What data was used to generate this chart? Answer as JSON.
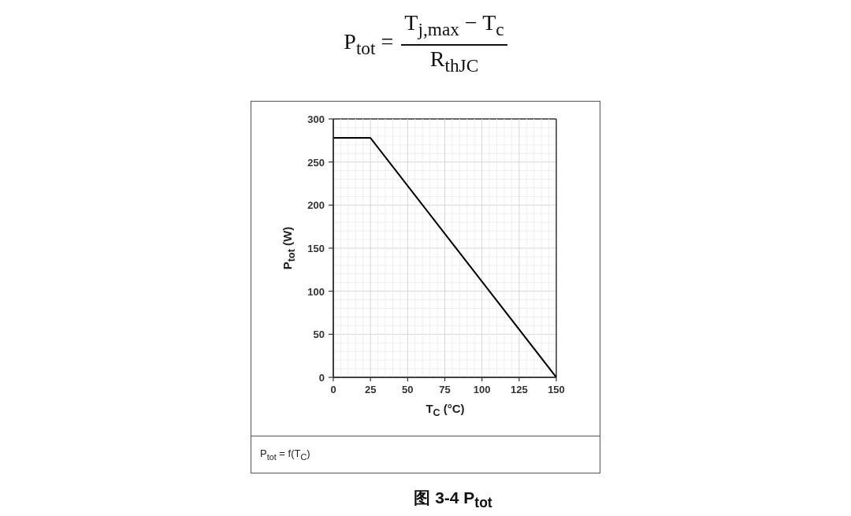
{
  "chart_data": {
    "type": "line",
    "title": "图 3-4 P$_{tot}$",
    "xlabel": "T$_{C}$ (°C)",
    "ylabel": "P$_{tot}$ (W)",
    "annotations": [
      "P$_{tot}$ =",
      "T$_{j,max}$ − T$_{c}$",
      "R$_{thJC}$",
      "P$_{tot}$ = f(T$_{C}$)"
    ],
    "x": [
      0,
      25,
      150
    ],
    "values": [
      278,
      278,
      0
    ],
    "color": "#000000",
    "xlim": [
      0,
      150
    ],
    "ylim": [
      0,
      300
    ],
    "xticks": [
      0,
      {
        "value": 5,
        "label": null
      },
      {
        "value": 10,
        "label": null
      },
      {
        "value": 15,
        "label": null
      },
      {
        "value": 20,
        "label": null
      },
      25,
      {
        "value": 30,
        "label": null
      },
      {
        "value": 35,
        "label": null
      },
      {
        "value": 40,
        "label": null
      },
      {
        "value": 45,
        "label": null
      },
      50,
      {
        "value": 55,
        "label": null
      },
      {
        "value": 60,
        "label": null
      },
      {
        "value": 65,
        "label": null
      },
      {
        "value": 70,
        "label": null
      },
      75,
      {
        "value": 80,
        "label": null
      },
      {
        "value": 85,
        "label": null
      },
      {
        "value": 90,
        "label": null
      },
      {
        "value": 95,
        "label": null
      },
      100,
      {
        "value": 105,
        "label": null
      },
      {
        "value": 110,
        "label": null
      },
      {
        "value": 115,
        "label": null
      },
      {
        "value": 120,
        "label": null
      },
      125,
      {
        "value": 130,
        "label": null
      },
      {
        "value": 135,
        "label": null
      },
      {
        "value": 140,
        "label": null
      },
      {
        "value": 145,
        "label": null
      },
      150
    ],
    "yticks": [
      0,
      {
        "value": 10,
        "label": null
      },
      {
        "value": 20,
        "label": null
      },
      {
        "value": 30,
        "label": null
      },
      {
        "value": 40,
        "label": null
      },
      50,
      {
        "value": 60,
        "label": null
      },
      {
        "value": 70,
        "label": null
      },
      {
        "value": 80,
        "label": null
      },
      {
        "value": 90,
        "label": null
      },
      100,
      {
        "value": 110,
        "label": null
      },
      {
        "value": 120,
        "label": null
      },
      {
        "value": 130,
        "label": null
      },
      {
        "value": 140,
        "label": null
      },
      150,
      {
        "value": 160,
        "label": null
      },
      {
        "value": 170,
        "label": null
      },
      {
        "value": 180,
        "label": null
      },
      {
        "value": 190,
        "label": null
      },
      200,
      {
        "value": 210,
        "label": null
      },
      {
        "value": 220,
        "label": null
      },
      {
        "value": 230,
        "label": null
      },
      {
        "value": 240,
        "label": null
      },
      250,
      {
        "value": 260,
        "label": null
      },
      {
        "value": 270,
        "label": null
      },
      {
        "value": 280,
        "label": null
      },
      {
        "value": 290,
        "label": null
      },
      300
    ],
    "grid": true
  }
}
